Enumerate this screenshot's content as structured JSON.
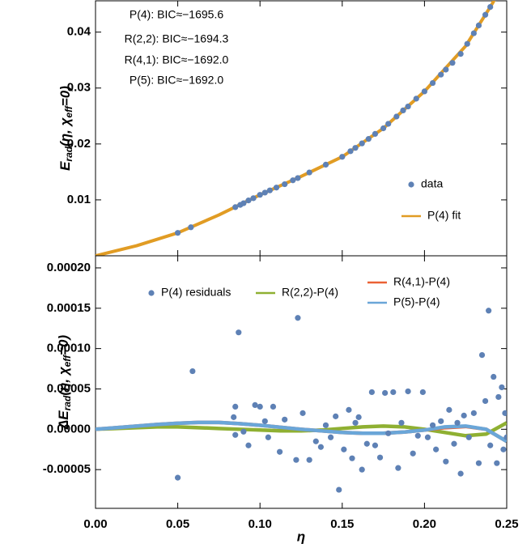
{
  "chart_data": [
    {
      "type": "line",
      "annotations": [
        "P(4): BIC≈−1695.6",
        "R(2,2): BIC≈−1694.3",
        "R(4,1): BIC≈−1692.0",
        "P(5): BIC≈−1692.0"
      ],
      "ylabel_parts": [
        "E",
        "rad",
        "(η, χ",
        "eff",
        "=0)"
      ],
      "xlim": [
        0,
        0.25
      ],
      "xticks": [
        0,
        0.05,
        0.1,
        0.15,
        0.2,
        0.25
      ],
      "ylim": [
        0,
        0.0456
      ],
      "yticks": [
        0.01,
        0.02,
        0.03,
        0.04
      ],
      "series": [
        {
          "name": "data",
          "color": "#5e81b5",
          "style": "markers",
          "x": [
            0.05,
            0.058,
            0.085,
            0.088,
            0.09,
            0.093,
            0.096,
            0.1,
            0.103,
            0.106,
            0.11,
            0.115,
            0.12,
            0.123,
            0.13,
            0.14,
            0.15,
            0.155,
            0.158,
            0.162,
            0.166,
            0.17,
            0.175,
            0.178,
            0.183,
            0.187,
            0.19,
            0.195,
            0.2,
            0.205,
            0.21,
            0.213,
            0.217,
            0.222,
            0.226,
            0.23,
            0.233,
            0.237,
            0.24
          ],
          "values": [
            0.0041,
            0.0051,
            0.0087,
            0.0091,
            0.0094,
            0.0099,
            0.0103,
            0.0109,
            0.0113,
            0.0117,
            0.0122,
            0.0128,
            0.0135,
            0.0139,
            0.0149,
            0.0163,
            0.0177,
            0.0187,
            0.0193,
            0.0201,
            0.0209,
            0.0218,
            0.0228,
            0.0236,
            0.0249,
            0.026,
            0.0267,
            0.0281,
            0.0294,
            0.0309,
            0.0324,
            0.0333,
            0.0345,
            0.0361,
            0.0379,
            0.0398,
            0.0412,
            0.0431,
            0.0445
          ]
        },
        {
          "name": "P(4) fit",
          "color": "#e19c24",
          "style": "line",
          "x": [
            0,
            0.025,
            0.05,
            0.075,
            0.1,
            0.125,
            0.15,
            0.175,
            0.2,
            0.225,
            0.24,
            0.245
          ],
          "values": [
            0,
            0.0018,
            0.0041,
            0.0073,
            0.0109,
            0.0142,
            0.0177,
            0.0228,
            0.0294,
            0.0375,
            0.0445,
            0.047
          ]
        }
      ]
    },
    {
      "type": "line",
      "ylabel_parts": [
        "ΔE",
        "rad",
        "(η, χ",
        "eff",
        "=0)"
      ],
      "xlabel": "η",
      "xlim": [
        0,
        0.25
      ],
      "xticks": [
        {
          "value": 0,
          "label": "0.00"
        },
        {
          "value": 0.05,
          "label": "0.05"
        },
        {
          "value": 0.1,
          "label": "0.10"
        },
        {
          "value": 0.15,
          "label": "0.15"
        },
        {
          "value": 0.2,
          "label": "0.20"
        },
        {
          "value": 0.25,
          "label": "0.25"
        }
      ],
      "ylim": [
        -9.8e-05,
        0.000215
      ],
      "yticks": [
        {
          "value": -5e-05,
          "label": "-0.00005"
        },
        {
          "value": 0,
          "label": "0.00000"
        },
        {
          "value": 5e-05,
          "label": "0.00005"
        },
        {
          "value": 0.0001,
          "label": "0.00010"
        },
        {
          "value": 0.00015,
          "label": "0.00015"
        },
        {
          "value": 0.0002,
          "label": "0.00020"
        }
      ],
      "series": [
        {
          "name": "P(4) residuals",
          "color": "#5e81b5",
          "style": "markers",
          "x": [
            0.05,
            0.059,
            0.084,
            0.085,
            0.087,
            0.085,
            0.09,
            0.093,
            0.097,
            0.1,
            0.103,
            0.105,
            0.108,
            0.112,
            0.115,
            0.122,
            0.123,
            0.126,
            0.13,
            0.134,
            0.137,
            0.14,
            0.143,
            0.146,
            0.148,
            0.151,
            0.154,
            0.156,
            0.158,
            0.16,
            0.162,
            0.165,
            0.168,
            0.17,
            0.173,
            0.176,
            0.178,
            0.181,
            0.184,
            0.186,
            0.19,
            0.193,
            0.196,
            0.199,
            0.202,
            0.205,
            0.207,
            0.21,
            0.213,
            0.215,
            0.218,
            0.22,
            0.222,
            0.224,
            0.227,
            0.23,
            0.233,
            0.235,
            0.237,
            0.239,
            0.24,
            0.242,
            0.244,
            0.245,
            0.247,
            0.248,
            0.249,
            0.25
          ],
          "values": [
            -6e-05,
            7.2e-05,
            1.5e-05,
            2.8e-05,
            0.00012,
            -7e-06,
            -3e-06,
            -2e-05,
            3e-05,
            2.8e-05,
            1e-05,
            -1e-05,
            2.8e-05,
            -2.8e-05,
            1.2e-05,
            -3.8e-05,
            0.000138,
            2e-05,
            -3.8e-05,
            -1.5e-05,
            -2.2e-05,
            5e-06,
            -1e-05,
            1.6e-05,
            -7.5e-05,
            -2.5e-05,
            2.4e-05,
            -3.6e-05,
            8e-06,
            1.5e-05,
            -5e-05,
            -1.8e-05,
            4.6e-05,
            -2e-05,
            -3.5e-05,
            4.5e-05,
            -5e-06,
            4.6e-05,
            -4.8e-05,
            8e-06,
            4.7e-05,
            -3e-05,
            -8e-06,
            4.6e-05,
            -1e-05,
            5e-06,
            -2.5e-05,
            1e-05,
            -4e-05,
            2.4e-05,
            -1.8e-05,
            8e-06,
            -5.5e-05,
            1.7e-05,
            -1e-05,
            2e-05,
            -4.2e-05,
            9.2e-05,
            3.5e-05,
            0.000147,
            -2e-05,
            6.5e-05,
            -4.2e-05,
            4e-05,
            5.2e-05,
            -2.5e-05,
            2e-05,
            -1e-05
          ]
        },
        {
          "name": "R(2,2)-P(4)",
          "color": "#8fb032",
          "style": "line",
          "x": [
            0,
            0.0125,
            0.025,
            0.0375,
            0.05,
            0.0625,
            0.075,
            0.0875,
            0.1,
            0.1125,
            0.125,
            0.1375,
            0.15,
            0.1625,
            0.175,
            0.1875,
            0.2,
            0.2125,
            0.225,
            0.2375,
            0.25
          ],
          "values": [
            0,
            1e-06,
            2e-06,
            3e-06,
            3e-06,
            2e-06,
            1e-06,
            0,
            -1e-06,
            -2e-06,
            -2e-06,
            -1e-06,
            1e-06,
            3e-06,
            4e-06,
            3e-06,
            0,
            -4e-06,
            -8e-06,
            -6e-06,
            8e-06
          ]
        },
        {
          "name": "R(4,1)-P(4)",
          "color": "#eb6235",
          "style": "line",
          "x": [
            0,
            0.0125,
            0.025,
            0.0375,
            0.05,
            0.0625,
            0.075,
            0.0875,
            0.1,
            0.1125,
            0.125,
            0.1375,
            0.15,
            0.1625,
            0.175,
            0.1875,
            0.2,
            0.2125,
            0.225,
            0.2375,
            0.25
          ],
          "values": [
            0,
            2e-06,
            4e-06,
            6e-06,
            7.5e-06,
            8.5e-06,
            8.5e-06,
            7e-06,
            5e-06,
            2.5e-06,
            0,
            -2e-06,
            -4e-06,
            -5e-06,
            -5e-06,
            -3.5e-06,
            -1e-06,
            2e-06,
            3.5e-06,
            0,
            -1.5e-05
          ]
        },
        {
          "name": "P(5)-P(4)",
          "color": "#6aa6d8",
          "style": "line",
          "x": [
            0,
            0.0125,
            0.025,
            0.0375,
            0.05,
            0.0625,
            0.075,
            0.0875,
            0.1,
            0.1125,
            0.125,
            0.1375,
            0.15,
            0.1625,
            0.175,
            0.1875,
            0.2,
            0.2125,
            0.225,
            0.2375,
            0.25
          ],
          "values": [
            0,
            2e-06,
            4e-06,
            6e-06,
            7.5e-06,
            8.5e-06,
            8.5e-06,
            7e-06,
            5e-06,
            2.5e-06,
            0,
            -2e-06,
            -4e-06,
            -5e-06,
            -5e-06,
            -3.5e-06,
            -1e-06,
            3e-06,
            4e-06,
            0,
            -1.5e-05
          ]
        }
      ]
    }
  ]
}
